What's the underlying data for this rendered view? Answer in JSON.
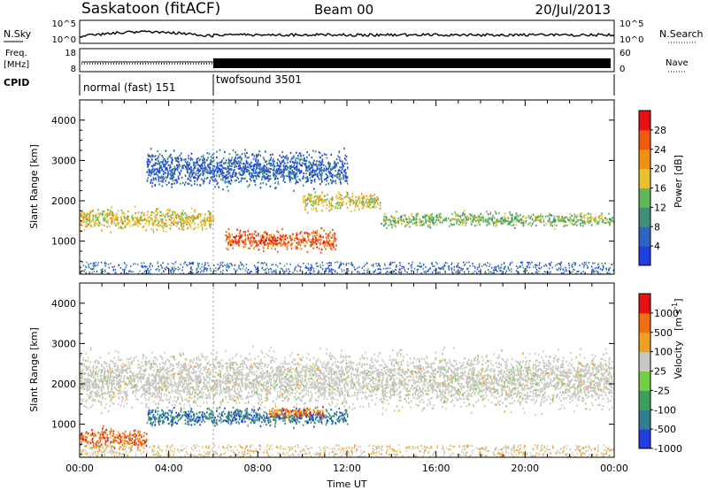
{
  "header": {
    "station": "Saskatoon (fitACF)",
    "beam": "Beam 00",
    "date": "20/Jul/2013"
  },
  "strip": {
    "nsky_label": "N.Sky",
    "nsky_ticks": [
      "10^5",
      "10^0"
    ],
    "nsearch_label": "N.Search",
    "nsearch_ticks": [
      "10^5",
      "10^0"
    ],
    "freq_label": "Freq.",
    "freq_unit": "[MHz]",
    "freq_ticks": [
      "18",
      "8"
    ],
    "nave_label": "Nave",
    "nave_ticks": [
      "60",
      "0"
    ],
    "cpid_label": "CPID",
    "cpid_segments": [
      {
        "name": "normal (fast) 151",
        "start_hour": 0.0,
        "end_hour": 6.0
      },
      {
        "name": "twofsound 3501",
        "start_hour": 6.0,
        "end_hour": 24.0
      }
    ]
  },
  "chart_data": [
    {
      "type": "heatmap",
      "panel": "power",
      "ylabel": "Slant Range [km]",
      "ylim": [
        180,
        4500
      ],
      "yticks": [
        "1000",
        "2000",
        "3000",
        "4000"
      ],
      "xlim": [
        "00:00",
        "24:00"
      ],
      "colorbar": {
        "label": "Power [dB]",
        "ticks": [
          "4",
          "8",
          "12",
          "16",
          "20",
          "24",
          "28"
        ],
        "colors": [
          "#1f3de0",
          "#2f63c8",
          "#3d8f7c",
          "#5fb85a",
          "#e8c030",
          "#f09010",
          "#f05a10",
          "#e81010"
        ]
      },
      "echo_bands": [
        {
          "start_hour": 0.0,
          "end_hour": 6.0,
          "range_km": [
            1200,
            1900
          ],
          "power_db": 20
        },
        {
          "start_hour": 6.5,
          "end_hour": 11.5,
          "range_km": [
            700,
            1400
          ],
          "power_db": 28
        },
        {
          "start_hour": 10.0,
          "end_hour": 13.5,
          "range_km": [
            1700,
            2300
          ],
          "power_db": 18
        },
        {
          "start_hour": 13.5,
          "end_hour": 24.0,
          "range_km": [
            1300,
            1800
          ],
          "power_db": 16
        },
        {
          "start_hour": 3.0,
          "end_hour": 12.0,
          "range_km": [
            2200,
            3400
          ],
          "power_db": 6
        }
      ]
    },
    {
      "type": "heatmap",
      "panel": "velocity",
      "ylabel": "Slant Range [km]",
      "ylim": [
        180,
        4500
      ],
      "yticks": [
        "1000",
        "2000",
        "3000",
        "4000"
      ],
      "xlabel": "Time UT",
      "xlim": [
        "00:00",
        "24:00"
      ],
      "xticks": [
        "00:00",
        "04:00",
        "08:00",
        "12:00",
        "16:00",
        "20:00",
        "00:00"
      ],
      "colorbar": {
        "label": "Velocity",
        "unit": "[m s",
        "unit_exp": "-1",
        "unit_close": "]",
        "ticks": [
          "1000",
          "500",
          "100",
          "25",
          "-25",
          "-100",
          "-500",
          "-1000"
        ],
        "colors": [
          "#1f3de0",
          "#2f7f8f",
          "#3da05a",
          "#6fcf40",
          "#c8c8c0",
          "#f0a020",
          "#f07010",
          "#e81010"
        ]
      },
      "echo_bands": [
        {
          "start_hour": 0.0,
          "end_hour": 3.0,
          "range_km": [
            300,
            1000
          ],
          "velocity_ms": -150
        },
        {
          "start_hour": 0.0,
          "end_hour": 24.0,
          "range_km": [
            1200,
            3000
          ],
          "velocity_ms": 0
        },
        {
          "start_hour": 3.0,
          "end_hour": 12.0,
          "range_km": [
            900,
            1500
          ],
          "velocity_ms": 120
        },
        {
          "start_hour": 8.5,
          "end_hour": 11.0,
          "range_km": [
            1100,
            1500
          ],
          "velocity_ms": -150
        }
      ]
    }
  ]
}
